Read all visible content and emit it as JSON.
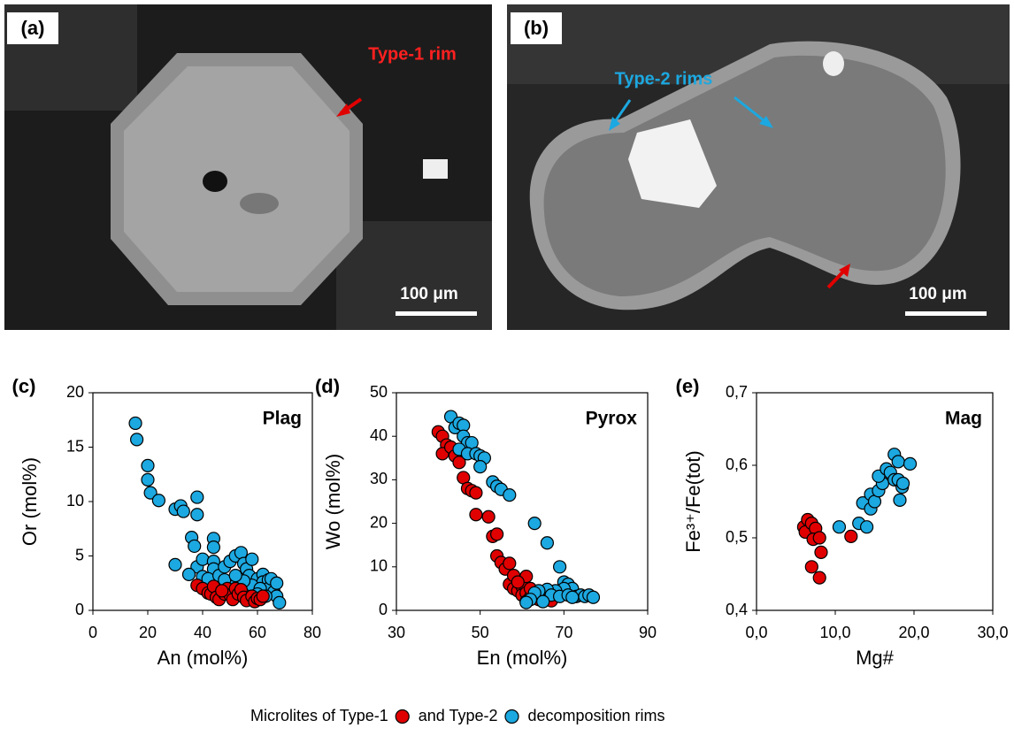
{
  "photos": [
    {
      "panel": "(a)",
      "annotation": "Type-1 rim",
      "scale_bar": "100 μm"
    },
    {
      "panel": "(b)",
      "annotation": "Type-2 rims",
      "scale_bar": "100 μm"
    }
  ],
  "chart_data": [
    {
      "type": "scatter",
      "panel": "(c)",
      "title": "Plag",
      "xlabel": "An (mol%)",
      "ylabel": "Or (mol%)",
      "xlim": [
        0,
        80
      ],
      "xticks": [
        0,
        20,
        40,
        60,
        80
      ],
      "ylim": [
        0,
        20
      ],
      "yticks": [
        0,
        5,
        10,
        15,
        20
      ],
      "series": [
        {
          "color": "#1ca8e0",
          "x": [
            15.5,
            16,
            20,
            20,
            21,
            24,
            30,
            32,
            33,
            38,
            38,
            36,
            37,
            38,
            40,
            44,
            44,
            44,
            44,
            30,
            35,
            40,
            42,
            46,
            48,
            50,
            52,
            54,
            55,
            56,
            57,
            58,
            60,
            62,
            62,
            64,
            64,
            65,
            66,
            67,
            67,
            68,
            58,
            55,
            50,
            48,
            52,
            61,
            60,
            63
          ],
          "values": [
            17.2,
            15.7,
            13.3,
            12,
            10.8,
            10.1,
            9.3,
            9.6,
            9.1,
            10.4,
            8.8,
            6.7,
            5.9,
            4,
            4.7,
            6.6,
            5.8,
            4.5,
            3.8,
            4.2,
            3.3,
            3.1,
            2.9,
            3.2,
            4,
            4.5,
            5,
            5.3,
            4.3,
            3.8,
            3.2,
            4.7,
            2.9,
            3.3,
            2.6,
            2.8,
            2,
            2.9,
            1.7,
            2.5,
            1.3,
            0.7,
            2.3,
            2.7,
            2.2,
            2.8,
            3.2,
            2,
            1.5,
            1.3
          ]
        },
        {
          "color": "#e00000",
          "x": [
            38,
            40,
            42,
            43,
            44,
            45,
            46,
            48,
            49,
            50,
            51,
            52,
            53,
            54,
            55,
            56,
            58,
            59,
            60,
            61,
            62,
            47
          ],
          "values": [
            2.3,
            2,
            1.6,
            1.5,
            2.2,
            1.2,
            1,
            1.5,
            2,
            1.4,
            1,
            2,
            1.5,
            1.9,
            1.2,
            0.9,
            1.3,
            0.8,
            1.1,
            1,
            1.3,
            1.8
          ]
        }
      ]
    },
    {
      "type": "scatter",
      "panel": "(d)",
      "title": "Pyrox",
      "xlabel": "En (mol%)",
      "ylabel": "Wo (mol%)",
      "xlim": [
        30,
        90
      ],
      "xticks": [
        30,
        50,
        70,
        90
      ],
      "ylim": [
        0,
        50
      ],
      "yticks": [
        0,
        10,
        20,
        30,
        40,
        50
      ],
      "series": [
        {
          "color": "#e00000",
          "x": [
            40,
            41,
            42,
            41,
            43,
            44,
            45,
            46,
            47,
            48,
            49,
            49,
            52,
            53,
            54,
            54,
            55,
            56,
            57,
            57,
            58,
            58,
            59,
            60,
            60,
            61,
            61,
            62,
            62,
            63,
            64,
            64,
            65,
            67,
            59,
            61
          ],
          "values": [
            41,
            40,
            38,
            36,
            37.5,
            35.5,
            34,
            30.5,
            28,
            27.5,
            27,
            22,
            21.5,
            17,
            17.5,
            12.5,
            11,
            9.5,
            10.8,
            6,
            8,
            5,
            4.5,
            5.5,
            3.5,
            7.8,
            4,
            3,
            5,
            3,
            3.5,
            2.5,
            2.8,
            2.2,
            6.5,
            2
          ]
        },
        {
          "color": "#1ca8e0",
          "x": [
            43,
            44,
            45,
            46,
            46,
            47,
            45,
            48,
            47,
            49,
            50,
            51,
            50,
            53,
            54,
            55,
            57,
            63,
            66,
            69,
            70,
            71,
            72,
            70,
            68,
            66,
            64,
            63,
            62,
            61,
            67,
            69,
            71,
            73,
            74,
            75,
            76,
            77,
            72,
            65
          ],
          "values": [
            44.5,
            42,
            43,
            42.5,
            40,
            38.5,
            37,
            38.5,
            36,
            36,
            35.5,
            35,
            33,
            29.5,
            28.5,
            27.8,
            26.5,
            20,
            15.5,
            10,
            6.5,
            6,
            5,
            5,
            4.5,
            4.8,
            4.5,
            4,
            2.5,
            1.8,
            3.5,
            3.2,
            3.5,
            3.2,
            3.5,
            3.2,
            3.5,
            3,
            3,
            2
          ]
        }
      ]
    },
    {
      "type": "scatter",
      "panel": "(e)",
      "title": "Mag",
      "xlabel": "Mg#",
      "ylabel": "Fe³⁺/Fe(tot)",
      "xlim": [
        0,
        30
      ],
      "xticks": [
        {
          "value": 0,
          "label": "0,0"
        },
        {
          "value": 10,
          "label": "10,0"
        },
        {
          "value": 20,
          "label": "20,0"
        },
        {
          "value": 30,
          "label": "30,0"
        }
      ],
      "ylim": [
        0.4,
        0.7
      ],
      "yticks": [
        {
          "value": 0.4,
          "label": "0,4"
        },
        {
          "value": 0.5,
          "label": "0,5"
        },
        {
          "value": 0.6,
          "label": "0,6"
        },
        {
          "value": 0.7,
          "label": "0,7"
        }
      ],
      "series": [
        {
          "color": "#e00000",
          "x": [
            6,
            6.5,
            6.2,
            7,
            7.5,
            7.2,
            8,
            8.2,
            7,
            8,
            12
          ],
          "values": [
            0.515,
            0.525,
            0.508,
            0.52,
            0.513,
            0.498,
            0.5,
            0.48,
            0.46,
            0.445,
            0.502
          ]
        },
        {
          "color": "#1ca8e0",
          "x": [
            10.5,
            13,
            13.5,
            14,
            14.5,
            14.5,
            15,
            15.5,
            16,
            15.5,
            16.5,
            17,
            17.5,
            17.5,
            18,
            18,
            18.5,
            18.2,
            19.5,
            18.6
          ],
          "values": [
            0.515,
            0.52,
            0.548,
            0.515,
            0.54,
            0.56,
            0.55,
            0.565,
            0.575,
            0.585,
            0.595,
            0.59,
            0.615,
            0.58,
            0.605,
            0.58,
            0.57,
            0.552,
            0.602,
            0.575
          ]
        }
      ]
    }
  ],
  "legend": [
    {
      "label": "Microlites of Type-1",
      "color": "#e00000"
    },
    {
      "label": "and Type-2",
      "color": "#1ca8e0"
    },
    {
      "label": "decomposition rims"
    }
  ]
}
